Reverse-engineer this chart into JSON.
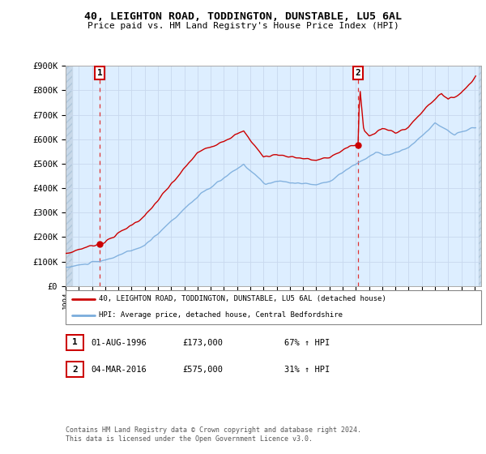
{
  "title": "40, LEIGHTON ROAD, TODDINGTON, DUNSTABLE, LU5 6AL",
  "subtitle": "Price paid vs. HM Land Registry's House Price Index (HPI)",
  "ylim": [
    0,
    900000
  ],
  "yticks": [
    0,
    100000,
    200000,
    300000,
    400000,
    500000,
    600000,
    700000,
    800000,
    900000
  ],
  "sale1": {
    "date_num": 1996.583,
    "price": 173000,
    "label": "1",
    "date_str": "01-AUG-1996",
    "price_str": "£173,000",
    "hpi_pct": "67% ↑ HPI"
  },
  "sale2": {
    "date_num": 2016.167,
    "price": 575000,
    "label": "2",
    "date_str": "04-MAR-2016",
    "price_str": "£575,000",
    "hpi_pct": "31% ↑ HPI"
  },
  "red_line_color": "#cc0000",
  "blue_line_color": "#7aacdc",
  "bg_color": "#ddeeff",
  "hatch_color": "#c8d8e8",
  "grid_color": "#c8d8ee",
  "plot_bg": "#ffffff",
  "vline_color": "#dd3333",
  "legend_label_red": "40, LEIGHTON ROAD, TODDINGTON, DUNSTABLE, LU5 6AL (detached house)",
  "legend_label_blue": "HPI: Average price, detached house, Central Bedfordshire",
  "footer": "Contains HM Land Registry data © Crown copyright and database right 2024.\nThis data is licensed under the Open Government Licence v3.0.",
  "xmin": 1994.0,
  "xmax": 2025.5
}
